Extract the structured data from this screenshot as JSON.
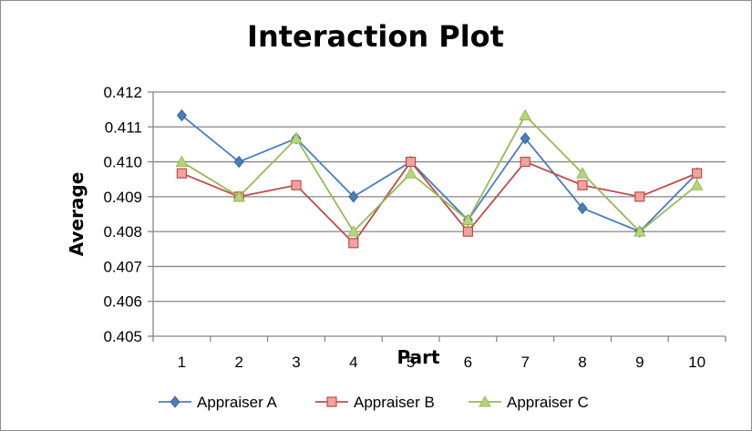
{
  "chart_data": {
    "type": "line",
    "title": "Interaction Plot",
    "xlabel": "Part",
    "ylabel": "Average",
    "categories": [
      "1",
      "2",
      "3",
      "4",
      "5",
      "6",
      "7",
      "8",
      "9",
      "10"
    ],
    "ylim": [
      0.405,
      0.412
    ],
    "yticks": [
      "0.405",
      "0.406",
      "0.407",
      "0.408",
      "0.409",
      "0.410",
      "0.411",
      "0.412"
    ],
    "grid": true,
    "legend_position": "bottom",
    "series": [
      {
        "name": "Appraiser A",
        "color": "#4a7ebb",
        "marker": "diamond",
        "values": [
          0.41133,
          0.41,
          0.41067,
          0.409,
          0.41,
          0.40833,
          0.41067,
          0.40867,
          0.408,
          0.40967
        ]
      },
      {
        "name": "Appraiser B",
        "color": "#be4b48",
        "marker": "square",
        "values": [
          0.40967,
          0.409,
          0.40933,
          0.40767,
          0.41,
          0.408,
          0.41,
          0.40933,
          0.409,
          0.40967
        ]
      },
      {
        "name": "Appraiser C",
        "color": "#98b954",
        "marker": "triangle",
        "values": [
          0.41,
          0.409,
          0.41067,
          0.408,
          0.40967,
          0.40833,
          0.41133,
          0.40967,
          0.408,
          0.40933
        ]
      }
    ]
  }
}
